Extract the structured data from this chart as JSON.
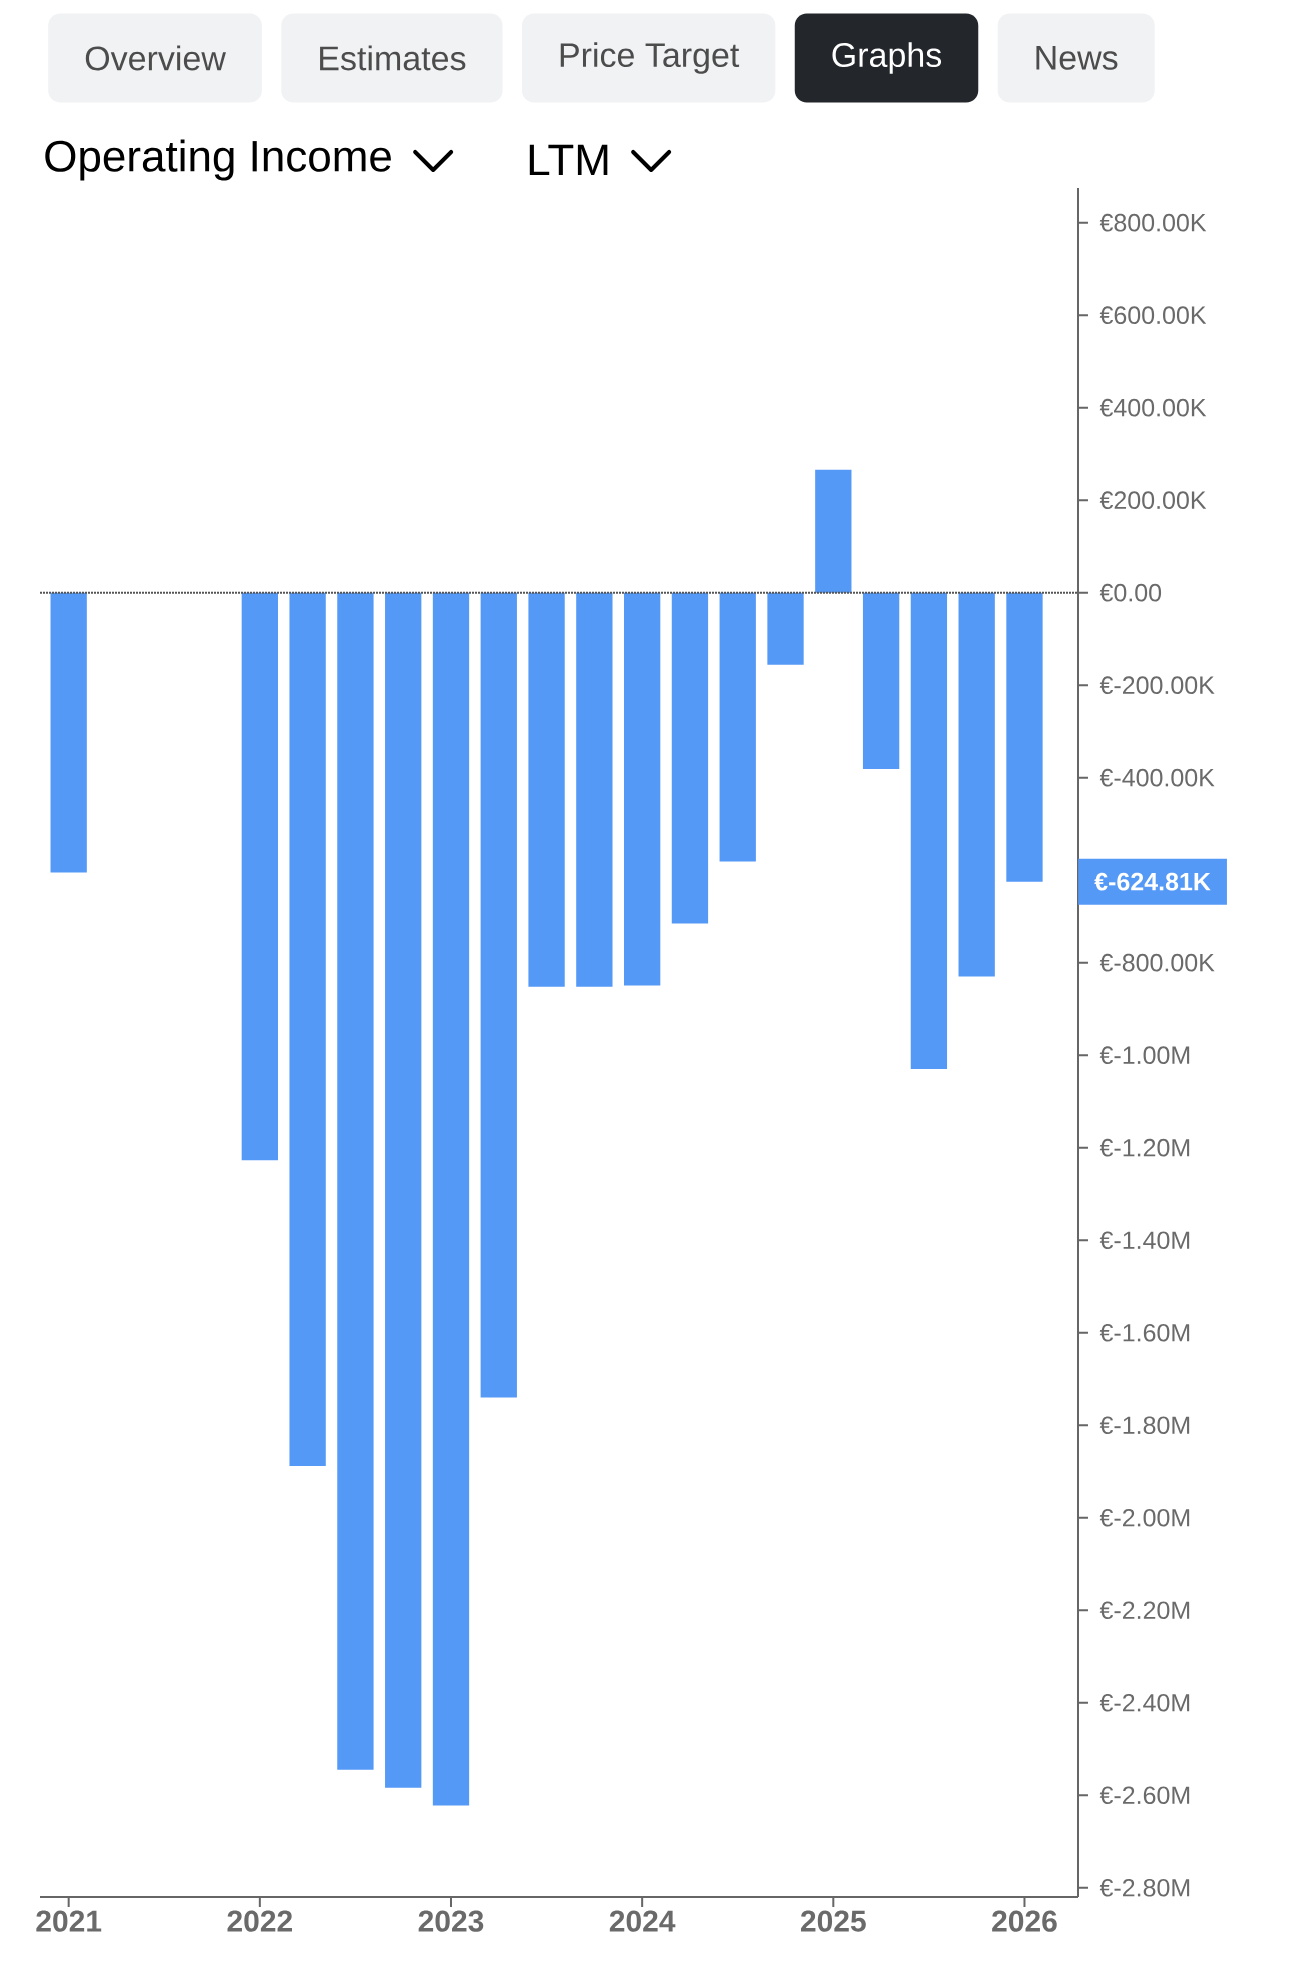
{
  "chart_data": {
    "type": "bar",
    "title": "Operating Income",
    "subtitle": "LTM",
    "annotations": [
      "Overview",
      "Estimates",
      "Price Target",
      "Graphs",
      "News",
      {
        "text": "€-624.81K",
        "x": 2026.0,
        "y": -624810
      }
    ],
    "x": [
      2021.0,
      2022.0,
      2022.25,
      2022.5,
      2022.75,
      2023.0,
      2023.25,
      2023.5,
      2023.75,
      2024.0,
      2024.25,
      2024.5,
      2024.75,
      2025.0,
      2025.25,
      2025.5,
      2025.75,
      2026.0
    ],
    "values": [
      -605000,
      -1227000,
      -1888000,
      -2545000,
      -2584000,
      -2622000,
      -1740000,
      -852000,
      -852000,
      -849000,
      -715000,
      -581000,
      -156000,
      266000,
      -381000,
      -1030000,
      -830000,
      -624810
    ],
    "color": "#5599f7",
    "xlim": [
      2020.85,
      2026.28
    ],
    "xticks": [
      2021,
      2022,
      2023,
      2024,
      2025,
      2026
    ],
    "ylim": [
      -2820000,
      875000
    ],
    "yticks": [
      {
        "value": 800000,
        "label": "€800.00K"
      },
      {
        "value": 600000,
        "label": "€600.00K"
      },
      {
        "value": 400000,
        "label": "€400.00K"
      },
      {
        "value": 200000,
        "label": "€200.00K"
      },
      {
        "value": 0,
        "label": "€0.00"
      },
      {
        "value": -200000,
        "label": "€-200.00K"
      },
      {
        "value": -400000,
        "label": "€-400.00K"
      },
      {
        "value": -600000,
        "label": null
      },
      {
        "value": -800000,
        "label": "€-800.00K"
      },
      {
        "value": -1000000,
        "label": "€-1.00M"
      },
      {
        "value": -1200000,
        "label": "€-1.20M"
      },
      {
        "value": -1400000,
        "label": "€-1.40M"
      },
      {
        "value": -1600000,
        "label": "€-1.60M"
      },
      {
        "value": -1800000,
        "label": "€-1.80M"
      },
      {
        "value": -2000000,
        "label": "€-2.00M"
      },
      {
        "value": -2200000,
        "label": "€-2.20M"
      },
      {
        "value": -2400000,
        "label": "€-2.40M"
      },
      {
        "value": -2600000,
        "label": "€-2.60M"
      },
      {
        "value": -2800000,
        "label": "€-2.80M"
      }
    ],
    "ref_lines": [
      {
        "axis": "y",
        "value": 0,
        "color": "#555555",
        "line_style": "dotted"
      }
    ],
    "grid": false
  }
}
